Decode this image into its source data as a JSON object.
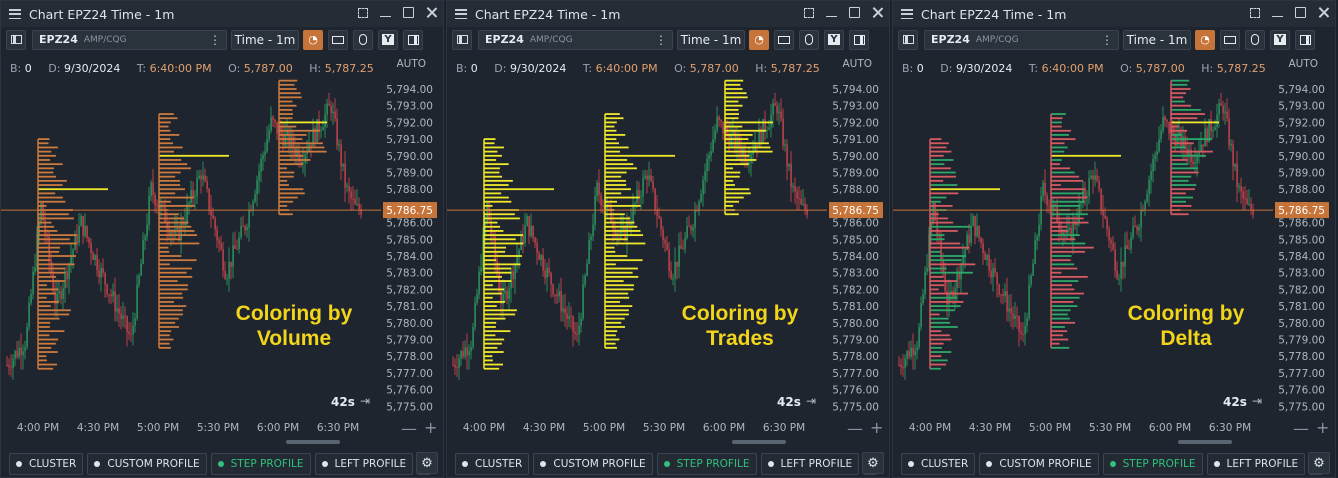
{
  "window_title": "Chart EPZ24 Time - 1m",
  "symbol": "EPZ24",
  "feed": "AMP/CQG",
  "timeframe": "Time - 1m",
  "info": {
    "b_label": "B:",
    "b_value": "0",
    "d_label": "D:",
    "d_value": "9/30/2024",
    "t_label": "T:",
    "t_value": "6:40:00 PM",
    "o_label": "O:",
    "o_value": "5,787.00",
    "h_label": "H:",
    "h_value": "5,787.25"
  },
  "auto_label": "AUTO",
  "price_axis": [
    "5,794.00",
    "5,793.00",
    "5,792.00",
    "5,791.00",
    "5,790.00",
    "5,789.00",
    "5,788.00",
    "5,787.00",
    "5,786.00",
    "5,785.00",
    "5,784.00",
    "5,783.00",
    "5,782.00",
    "5,781.00",
    "5,780.00",
    "5,779.00",
    "5,778.00",
    "5,777.00",
    "5,776.00",
    "5,775.00"
  ],
  "current_price": "5,786.75",
  "time_axis": [
    "4:00 PM",
    "4:30 PM",
    "5:00 PM",
    "5:30 PM",
    "6:00 PM",
    "6:30 PM"
  ],
  "countdown": "42s",
  "bottom_buttons": [
    "CLUSTER",
    "CUSTOM PROFILE",
    "STEP PROFILE",
    "LEFT PROFILE"
  ],
  "active_button": "STEP PROFILE",
  "colors": {
    "up": "#2e9e63",
    "down": "#d0464f",
    "volume": "#cc7a3e",
    "trades": "#f0e82a",
    "delta_pos": "#2ea868",
    "delta_neg": "#d65a62",
    "poc": "#f0e82a",
    "price_line": "#c7743a",
    "overlay_text": "#f2d51a"
  },
  "panels": [
    {
      "id": "volume",
      "overlay_line1": "Coloring by",
      "overlay_line2": "Volume"
    },
    {
      "id": "trades",
      "overlay_line1": "Coloring by",
      "overlay_line2": "Trades"
    },
    {
      "id": "delta",
      "overlay_line1": "Coloring by",
      "overlay_line2": "Delta"
    }
  ]
}
